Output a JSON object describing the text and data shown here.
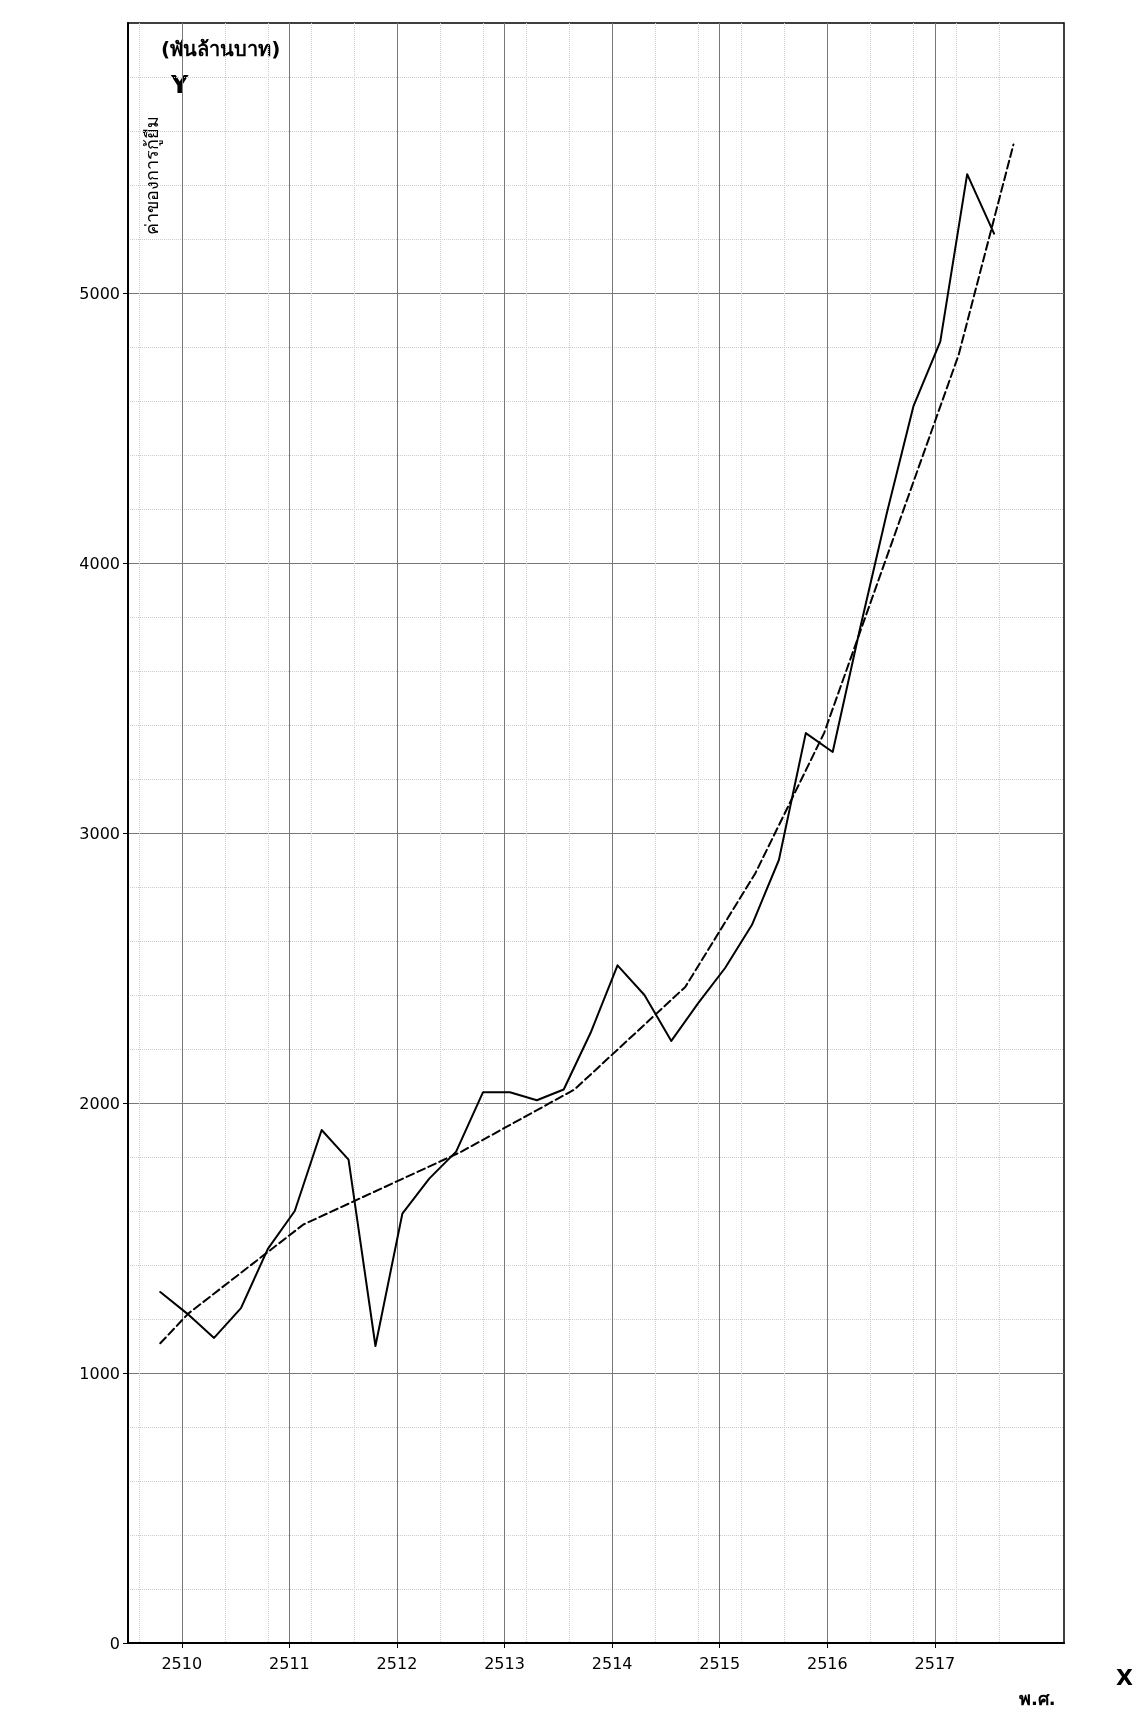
{
  "chart_data": {
    "type": "line",
    "ylabel": "ค่าของการกู้ยืม",
    "xlabel": "พ.ศ.",
    "annotations": [
      "(พันล้านบาท)",
      "Y",
      "X"
    ],
    "x": [
      2509.8,
      2510.05,
      2510.3,
      2510.55,
      2510.8,
      2511.05,
      2511.3,
      2511.55,
      2511.8,
      2512.05,
      2512.3,
      2512.55,
      2512.8,
      2513.05,
      2513.3,
      2513.55,
      2513.8,
      2514.05,
      2514.3,
      2514.55,
      2514.8,
      2515.05,
      2515.3,
      2515.55,
      2515.8,
      2516.05,
      2516.3,
      2516.55,
      2516.8,
      2517.05,
      2517.3,
      2517.55
    ],
    "series": [
      {
        "color": "#000000",
        "line_style": "solid",
        "values": [
          1300,
          1220,
          1130,
          1240,
          1460,
          1600,
          1900,
          1790,
          1100,
          1590,
          1720,
          1820,
          2040,
          2040,
          2010,
          2050,
          2260,
          2510,
          2400,
          2230,
          2370,
          2500,
          2660,
          2900,
          3370,
          3300,
          3750,
          4180,
          4580,
          4820,
          5440,
          5220
        ]
      },
      {
        "color": "#000000",
        "line_style": "dashed",
        "x": [
          2509.8,
          2510.06,
          2511.13,
          2512.11,
          2512.6,
          2513.65,
          2514.68,
          2515.33,
          2515.97,
          2517.22,
          2517.73
        ],
        "values": [
          1110,
          1220,
          1550,
          1730,
          1820,
          2050,
          2430,
          2850,
          3370,
          4770,
          5550
        ]
      }
    ],
    "xlim": [
      2509.5,
      2518.2
    ],
    "xticks": [
      2510,
      2511,
      2512,
      2513,
      2514,
      2515,
      2516,
      2517
    ],
    "ylim": [
      0,
      6000
    ],
    "yticks": [
      0,
      1000,
      2000,
      3000,
      4000,
      5000
    ],
    "grid": true
  }
}
